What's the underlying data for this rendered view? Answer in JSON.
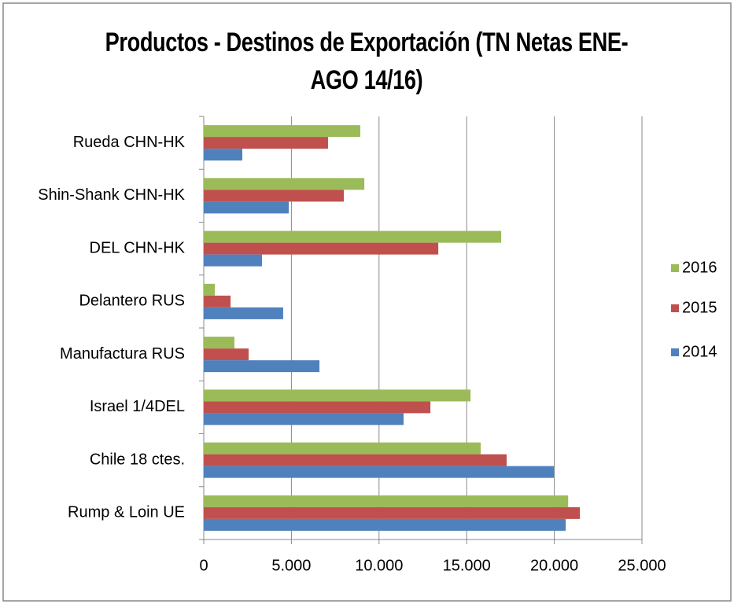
{
  "chart_data": {
    "type": "barh",
    "title": "Productos - Destinos de Exportación (TN Netas ENE-AGO 14/16)",
    "categories": [
      "Rueda CHN-HK",
      "Shin-Shank CHN-HK",
      "DEL CHN-HK",
      "Delantero RUS",
      "Manufactura RUS",
      "Israel 1/4DEL",
      "Chile 18 ctes.",
      "Rump & Loin UE"
    ],
    "series": [
      {
        "name": "2016",
        "color": "#9bbb59",
        "values": [
          8930,
          9160,
          16970,
          630,
          1750,
          15220,
          15800,
          20790
        ]
      },
      {
        "name": "2015",
        "color": "#c0504d",
        "values": [
          7090,
          7990,
          13380,
          1530,
          2560,
          12930,
          17280,
          21460
        ]
      },
      {
        "name": "2014",
        "color": "#4f81bd",
        "values": [
          2200,
          4850,
          3320,
          4530,
          6600,
          11400,
          19980,
          20650
        ]
      }
    ],
    "xlim": [
      0,
      25000
    ],
    "xticks": [
      0,
      {
        "value": 5000,
        "label": "5.000"
      },
      {
        "value": 10000,
        "label": "10.000"
      },
      {
        "value": 15000,
        "label": "15.000"
      },
      {
        "value": 20000,
        "label": "20.000"
      },
      {
        "value": 25000,
        "label": "25.000"
      }
    ],
    "grid": true,
    "legend": "right"
  }
}
